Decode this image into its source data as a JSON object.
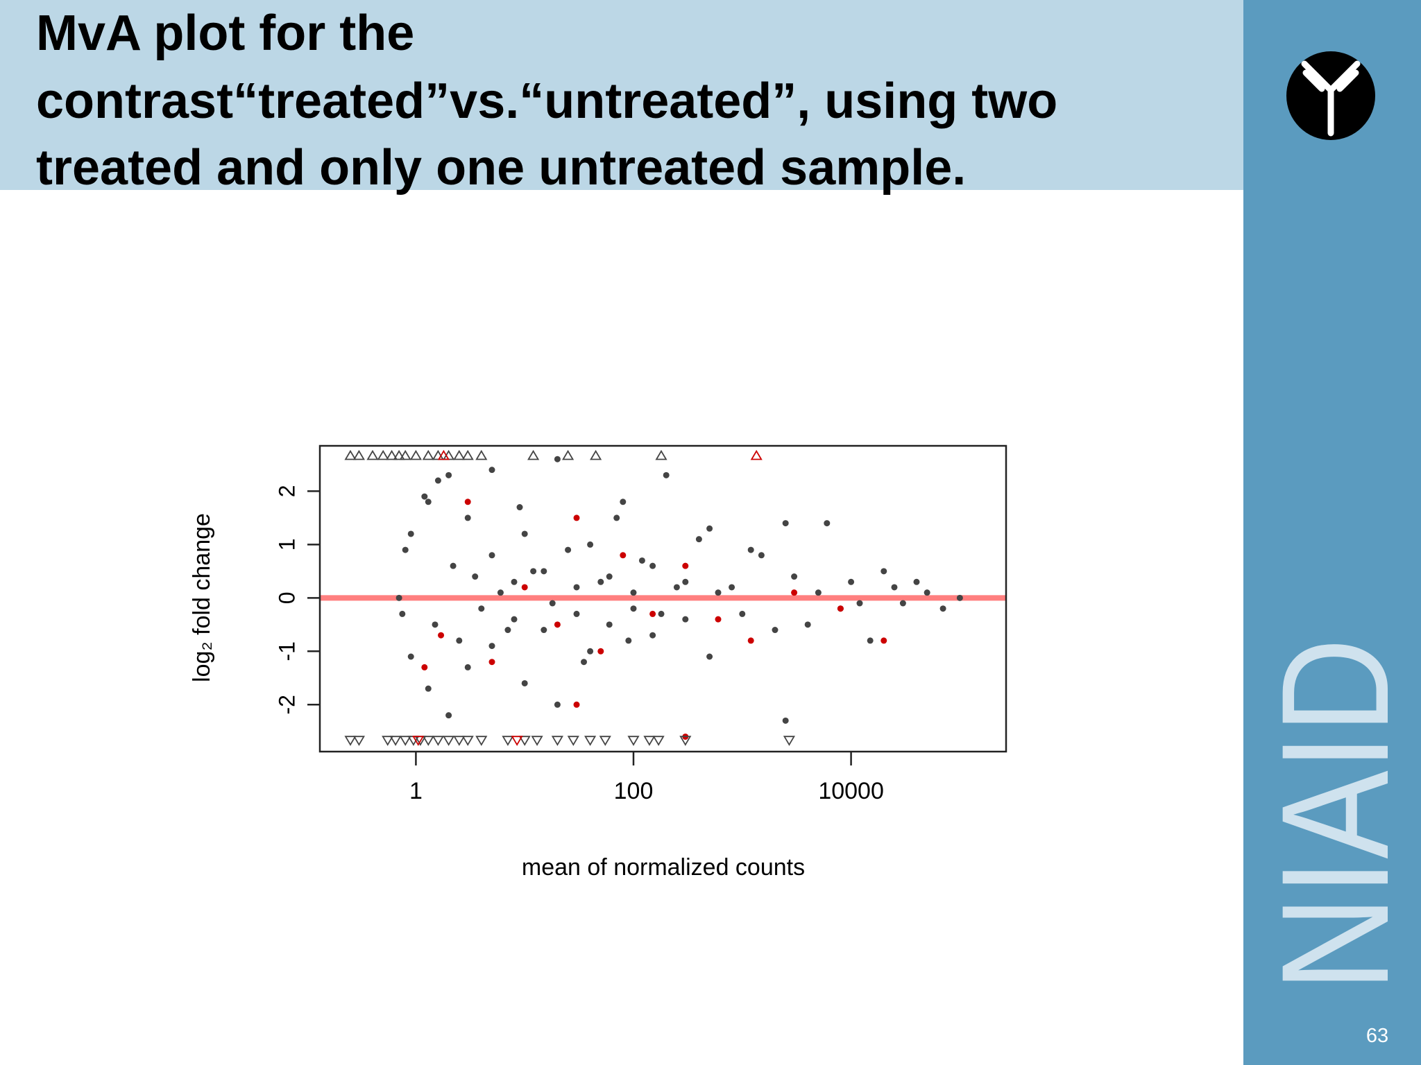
{
  "header": {
    "title_lines": [
      "MvA plot for the",
      "contrast“treated”vs.“untreated”, using two",
      "treated and only one untreated sample."
    ]
  },
  "sidebar": {
    "brand": "NIAID",
    "page_number": "63"
  },
  "chart_data": {
    "type": "scatter",
    "xlabel": "mean of normalized counts",
    "ylabel": "log₂ fold change",
    "xscale": "log",
    "xlim": [
      0.131,
      266000
    ],
    "xticks": [
      1,
      100,
      10000
    ],
    "ylim": [
      -2.88,
      2.85
    ],
    "yticks": [
      -2,
      -1,
      0,
      1,
      2
    ],
    "hline": {
      "value": 0,
      "color": "#ff7f7f"
    },
    "series": [
      {
        "color": "#444444",
        "marker": "circle",
        "x": [
          0.7,
          0.75,
          0.8,
          0.9,
          0.9,
          1.2,
          1.3,
          1.3,
          1.5,
          1.6,
          2,
          2,
          2.2,
          2.5,
          3,
          3,
          3.5,
          4,
          5,
          5,
          5,
          6,
          7,
          8,
          8,
          9,
          10,
          10,
          12,
          15,
          15,
          18,
          20,
          20,
          25,
          30,
          30,
          35,
          40,
          40,
          50,
          60,
          60,
          70,
          80,
          90,
          100,
          100,
          120,
          150,
          150,
          180,
          200,
          250,
          300,
          300,
          400,
          500,
          500,
          600,
          800,
          1000,
          1200,
          1500,
          2000,
          2500,
          2500,
          3000,
          4000,
          5000,
          6000,
          8000,
          10000,
          12000,
          15000,
          20000,
          25000,
          30000,
          40000,
          50000,
          70000,
          100000
        ],
        "values": [
          0,
          -0.3,
          0.9,
          1.2,
          -1.1,
          1.9,
          1.8,
          -1.7,
          -0.5,
          2.2,
          2.3,
          -2.2,
          0.6,
          -0.8,
          1.5,
          -1.3,
          0.4,
          -0.2,
          0.8,
          -0.9,
          2.4,
          0.1,
          -0.6,
          0.3,
          -0.4,
          1.7,
          1.2,
          -1.6,
          0.5,
          0.5,
          -0.6,
          -0.1,
          2.6,
          -2,
          0.9,
          0.2,
          -0.3,
          -1.2,
          1,
          -1,
          0.3,
          0.4,
          -0.5,
          1.5,
          1.8,
          -0.8,
          0.1,
          -0.2,
          0.7,
          0.6,
          -0.7,
          -0.3,
          2.3,
          0.2,
          0.3,
          -0.4,
          1.1,
          1.3,
          -1.1,
          0.1,
          0.2,
          -0.3,
          0.9,
          0.8,
          -0.6,
          -2.3,
          1.4,
          0.4,
          -0.5,
          0.1,
          1.4,
          -0.2,
          0.3,
          -0.1,
          -0.8,
          0.5,
          0.2,
          -0.1,
          0.3,
          0.1,
          -0.2,
          0
        ]
      },
      {
        "color": "#cc0000",
        "marker": "circle",
        "x": [
          1.2,
          1.7,
          3,
          5,
          10,
          20,
          30,
          30,
          50,
          80,
          150,
          300,
          300,
          600,
          1200,
          3000,
          8000,
          20000
        ],
        "values": [
          -1.3,
          -0.7,
          1.8,
          -1.2,
          0.2,
          -0.5,
          1.5,
          -2,
          -1,
          0.8,
          -0.3,
          0.6,
          -2.6,
          -0.4,
          -0.8,
          0.1,
          -0.2,
          -0.8
        ]
      },
      {
        "color": "#444444",
        "marker": "triangle-up",
        "x": [
          0.25,
          0.3,
          0.4,
          0.5,
          0.6,
          0.7,
          0.8,
          1,
          1.3,
          1.6,
          2,
          2.5,
          3,
          4,
          12,
          25,
          45,
          180
        ],
        "values": [
          2.66,
          2.66,
          2.66,
          2.66,
          2.66,
          2.66,
          2.66,
          2.66,
          2.66,
          2.66,
          2.66,
          2.66,
          2.66,
          2.66,
          2.66,
          2.66,
          2.66,
          2.66
        ]
      },
      {
        "color": "#cc0000",
        "marker": "triangle-up",
        "x": [
          1.8,
          1350
        ],
        "values": [
          2.66,
          2.66
        ]
      },
      {
        "color": "#444444",
        "marker": "triangle-down",
        "x": [
          0.25,
          0.3,
          0.55,
          0.65,
          0.8,
          0.95,
          1.1,
          1.3,
          1.6,
          2,
          2.5,
          3,
          4,
          7,
          10,
          13,
          20,
          28,
          40,
          55,
          100,
          140,
          170,
          300,
          2700
        ],
        "values": [
          -2.66,
          -2.66,
          -2.66,
          -2.66,
          -2.66,
          -2.66,
          -2.66,
          -2.66,
          -2.66,
          -2.66,
          -2.66,
          -2.66,
          -2.66,
          -2.66,
          -2.66,
          -2.66,
          -2.66,
          -2.66,
          -2.66,
          -2.66,
          -2.66,
          -2.66,
          -2.66,
          -2.66,
          -2.66
        ]
      },
      {
        "color": "#cc0000",
        "marker": "triangle-down",
        "x": [
          1.05,
          8.5
        ],
        "values": [
          -2.66,
          -2.66
        ]
      }
    ]
  }
}
